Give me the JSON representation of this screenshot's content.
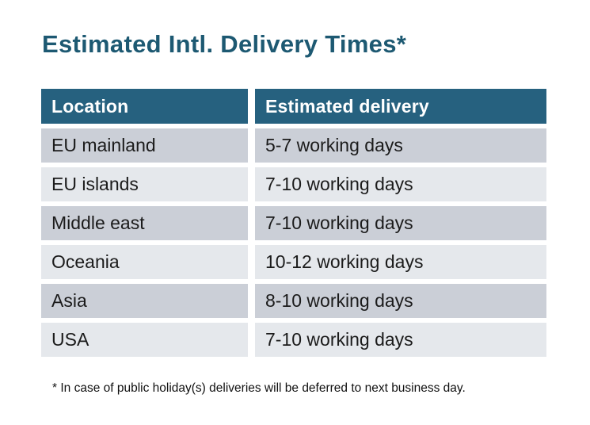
{
  "title": "Estimated Intl. Delivery Times*",
  "table": {
    "columns": [
      "Location",
      "Estimated delivery"
    ],
    "rows": [
      {
        "location": "EU mainland",
        "delivery": "5-7 working days"
      },
      {
        "location": "EU islands",
        "delivery": "7-10 working days"
      },
      {
        "location": "Middle east",
        "delivery": "7-10 working days"
      },
      {
        "location": "Oceania",
        "delivery": "10-12 working days"
      },
      {
        "location": "Asia",
        "delivery": "8-10 working days"
      },
      {
        "location": "USA",
        "delivery": "7-10 working days"
      }
    ]
  },
  "footnote": "* In case of public holiday(s) deliveries will be deferred to next business day.",
  "colors": {
    "header_bg": "#26617f",
    "row_dark": "#cbcfd7",
    "row_light": "#e5e8ec",
    "title_color": "#1d5972",
    "text_color": "#1b1b1b"
  }
}
